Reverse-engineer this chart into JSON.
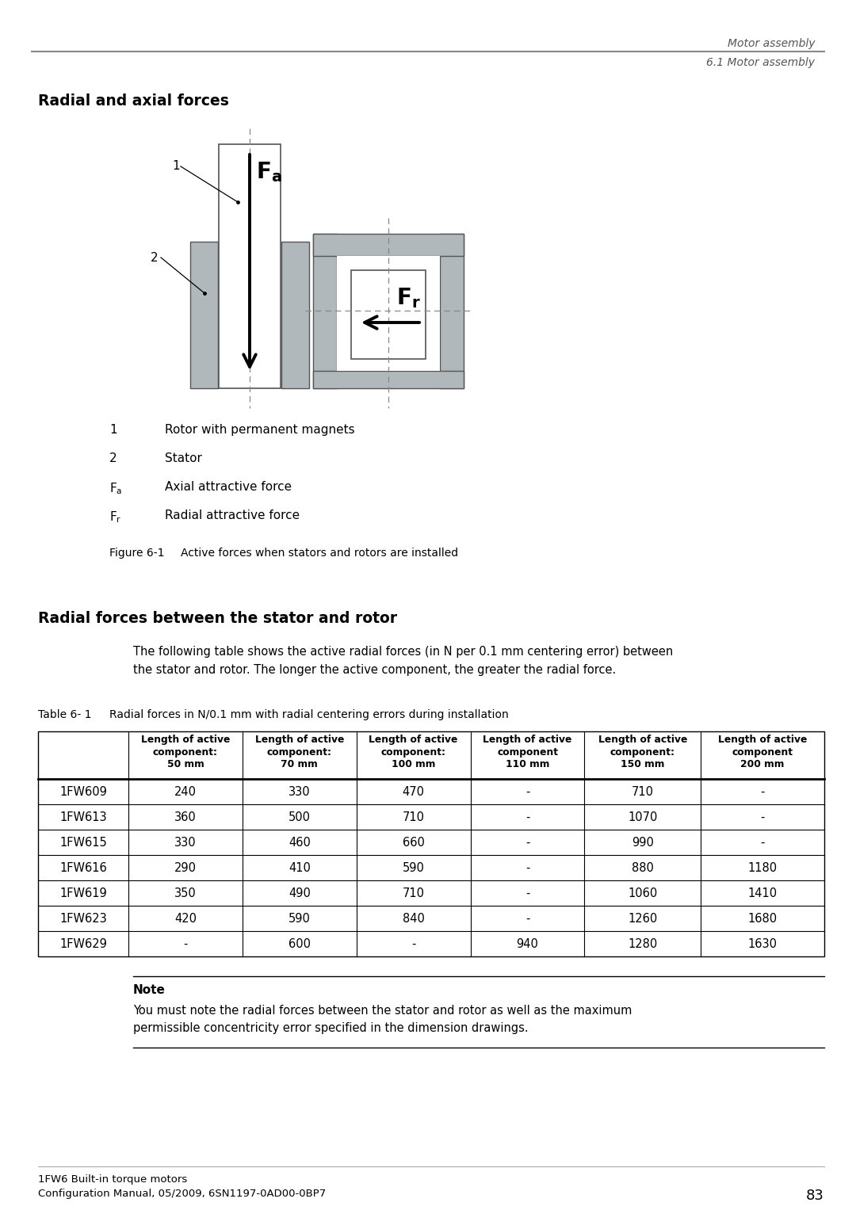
{
  "header_line1": "Motor assembly",
  "header_line2": "6.1 Motor assembly",
  "section_title": "Radial and axial forces",
  "section2_title": "Radial forces between the stator and rotor",
  "section2_body": "The following table shows the active radial forces (in N per 0.1 mm centering error) between\nthe stator and rotor. The longer the active component, the greater the radial force.",
  "table_label": "Table 6- 1",
  "table_caption": "Radial forces in N/0.1 mm with radial centering errors during installation",
  "table_headers": [
    "",
    "Length of active\ncomponent:\n50 mm",
    "Length of active\ncomponent:\n70 mm",
    "Length of active\ncomponent:\n100 mm",
    "Length of active\ncomponent\n110 mm",
    "Length of active\ncomponent:\n150 mm",
    "Length of active\ncomponent\n200 mm"
  ],
  "table_rows": [
    [
      "1FW609",
      "240",
      "330",
      "470",
      "-",
      "710",
      "-"
    ],
    [
      "1FW613",
      "360",
      "500",
      "710",
      "-",
      "1070",
      "-"
    ],
    [
      "1FW615",
      "330",
      "460",
      "660",
      "-",
      "990",
      "-"
    ],
    [
      "1FW616",
      "290",
      "410",
      "590",
      "-",
      "880",
      "1180"
    ],
    [
      "1FW619",
      "350",
      "490",
      "710",
      "-",
      "1060",
      "1410"
    ],
    [
      "1FW623",
      "420",
      "590",
      "840",
      "-",
      "1260",
      "1680"
    ],
    [
      "1FW629",
      "-",
      "600",
      "-",
      "940",
      "1280",
      "1630"
    ]
  ],
  "legend_items": [
    [
      "1",
      "Rotor with permanent magnets"
    ],
    [
      "2",
      "Stator"
    ],
    [
      "Fa",
      "Axial attractive force"
    ],
    [
      "Fr",
      "Radial attractive force"
    ]
  ],
  "figure_label": "Figure 6-1",
  "figure_caption": "Active forces when stators and rotors are installed",
  "note_title": "Note",
  "note_body": "You must note the radial forces between the stator and rotor as well as the maximum\npermissible concentricity error specified in the dimension drawings.",
  "footer_line1": "1FW6 Built-in torque motors",
  "footer_line2": "Configuration Manual, 05/2009, 6SN1197-0AD00-0BP7",
  "footer_page": "83",
  "bg_color": "#ffffff",
  "gray_fill": "#b0b8bc",
  "stator_edge": "#555555",
  "dash_color": "#888888"
}
